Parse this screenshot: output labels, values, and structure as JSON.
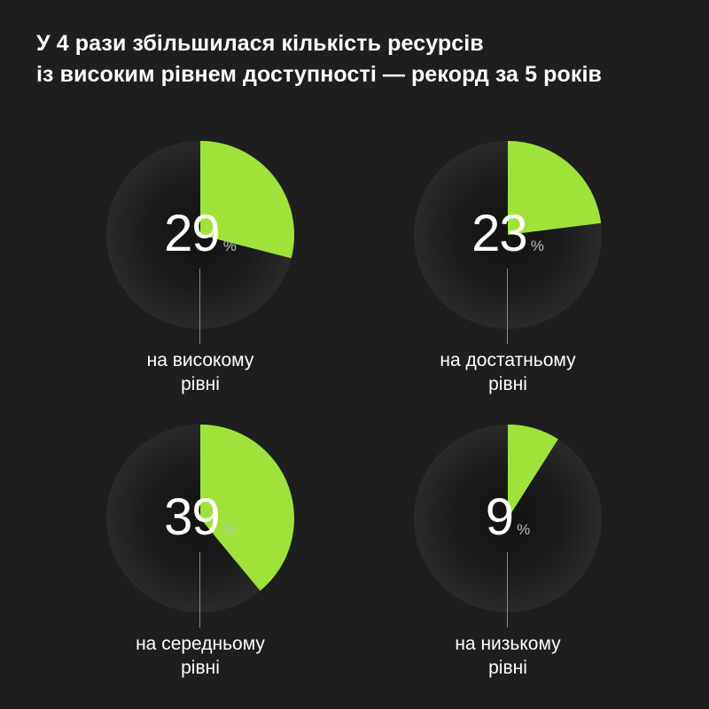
{
  "title": {
    "line1": "У 4 рази збільшилася кількість ресурсів",
    "line2": "із високим рівнем доступності — рекорд за 5 років"
  },
  "colors": {
    "background": "#1e1e1e",
    "accent": "#9fe33a",
    "track": "#2a2a2a"
  },
  "chart_data": {
    "type": "pie",
    "unit": "%",
    "series": [
      {
        "value": 29,
        "unit": "%",
        "label_line1": "на високому",
        "label_line2": "рівні"
      },
      {
        "value": 23,
        "unit": "%",
        "label_line1": "на достатньому",
        "label_line2": "рівні"
      },
      {
        "value": 39,
        "unit": "%",
        "label_line1": "на середньому",
        "label_line2": "рівні"
      },
      {
        "value": 9,
        "unit": "%",
        "label_line1": "на низькому",
        "label_line2": "рівні"
      }
    ]
  }
}
